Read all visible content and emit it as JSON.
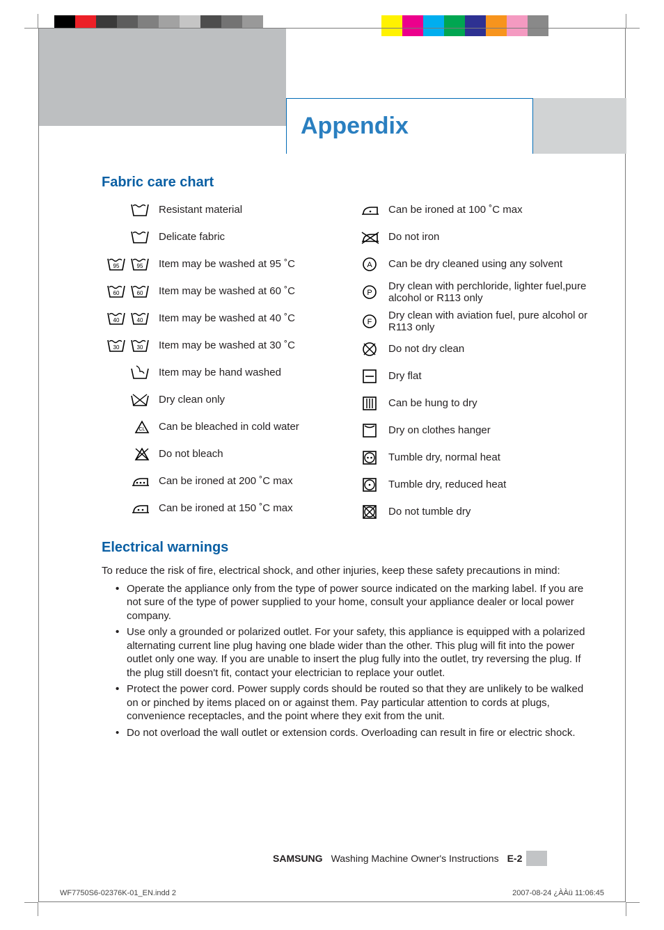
{
  "registration": {
    "left_swatches": [
      "#000000",
      "#ec2027",
      "#3a3a3a",
      "#5d5d5d",
      "#808080",
      "#a2a2a2",
      "#c5c5c5",
      "#4d4d4d",
      "#737373",
      "#999999"
    ],
    "right_swatches": [
      "#fff200",
      "#ec008c",
      "#00aeef",
      "#00a651",
      "#2e3192",
      "#f7941d",
      "#f49ac1",
      "#898989"
    ]
  },
  "appendix_title": "Appendix",
  "fabric_heading": "Fabric care chart",
  "left_items": [
    {
      "icon": "tub",
      "label": "Resistant material"
    },
    {
      "icon": "tub",
      "label": "Delicate fabric"
    },
    {
      "icon": "tub-95-pair",
      "label": "Item may be washed at 95 ˚C",
      "temp": "95"
    },
    {
      "icon": "tub-60-pair",
      "label": "Item may be washed at 60 ˚C",
      "temp": "60"
    },
    {
      "icon": "tub-40-pair",
      "label": "Item may be washed at 40 ˚C",
      "temp": "40"
    },
    {
      "icon": "tub-30-pair",
      "label": "Item may be washed at 30 ˚C",
      "temp": "30"
    },
    {
      "icon": "hand-wash",
      "label": "Item may be hand washed"
    },
    {
      "icon": "dryclean-x",
      "label": "Dry clean only"
    },
    {
      "icon": "bleach",
      "label": "Can be bleached in cold water"
    },
    {
      "icon": "no-bleach",
      "label": "Do not bleach"
    },
    {
      "icon": "iron-3",
      "label": "Can be ironed at 200 ˚C max"
    },
    {
      "icon": "iron-2",
      "label": "Can be ironed at 150 ˚C max"
    }
  ],
  "right_items": [
    {
      "icon": "iron-1",
      "label": "Can be ironed at 100 ˚C max"
    },
    {
      "icon": "no-iron",
      "label": "Do not iron"
    },
    {
      "icon": "circle-a",
      "label": "Can be dry cleaned using any solvent"
    },
    {
      "icon": "circle-p",
      "label": "Dry clean with perchloride, lighter fuel,pure alcohol or R113 only"
    },
    {
      "icon": "circle-f",
      "label": "Dry clean with aviation fuel, pure alcohol or R113 only"
    },
    {
      "icon": "no-dryclean",
      "label": "Do not dry clean"
    },
    {
      "icon": "dry-flat",
      "label": "Dry flat"
    },
    {
      "icon": "hang-dry",
      "label": "Can be hung to dry"
    },
    {
      "icon": "hanger-dry",
      "label": "Dry on clothes hanger"
    },
    {
      "icon": "tumble-2",
      "label": "Tumble dry, normal heat"
    },
    {
      "icon": "tumble-1",
      "label": "Tumble dry, reduced heat"
    },
    {
      "icon": "no-tumble",
      "label": "Do not tumble dry"
    }
  ],
  "warnings_heading": "Electrical warnings",
  "warnings_intro": "To reduce the risk of fire, electrical shock, and other injuries, keep these safety precautions in mind:",
  "warnings": [
    "Operate the appliance only from the type of power source indicated on the marking label. If you are not sure of the type of power supplied to your home, consult your appliance dealer or local power company.",
    "Use only a grounded or polarized outlet. For your safety, this appliance is equipped with a polarized alternating current line plug having one blade wider than the other. This plug will fit into the power outlet only one way. If you are unable to insert the plug fully into the outlet, try reversing the plug. If the plug still doesn't fit, contact your electrician to replace your outlet.",
    "Protect the power cord. Power supply cords should be routed so that they are unlikely to be walked on or pinched by items placed on or against them. Pay particular attention to cords at plugs, convenience receptacles, and the point where they exit from the unit.",
    "Do not overload the wall outlet or extension cords. Overloading can result in fire or electric shock."
  ],
  "footer": {
    "brand": "SAMSUNG",
    "doc": "Washing Machine Owner's Instructions",
    "page": "E-2"
  },
  "indd_left": "WF7750S6-02376K-01_EN.indd   2",
  "indd_right": "2007-08-24   ¿ÀÀü 11:06:45",
  "colors": {
    "heading_blue": "#0a5fa3",
    "title_blue": "#2a7fc0",
    "title_border": "#006bb6",
    "gray_band": "#bdbfc1",
    "right_band": "#d1d3d4"
  }
}
